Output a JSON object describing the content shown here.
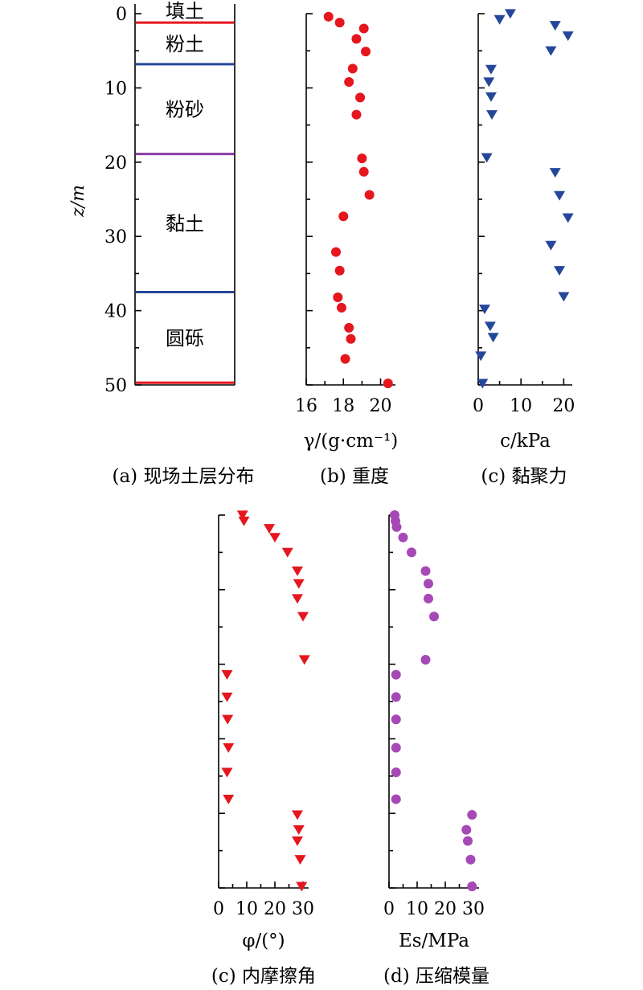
{
  "colors": {
    "red": "#e5161e",
    "blue": "#25479a",
    "purple": "#8b3ca5",
    "orchid": "#a648b6"
  },
  "chart_data": [
    {
      "id": "a",
      "type": "table",
      "caption": "(a) 现场土层分布",
      "ylabel": "z/m",
      "ylim": [
        0,
        50
      ],
      "yticks": [
        "0",
        "10",
        "20",
        "30",
        "40",
        "50"
      ],
      "layers": [
        {
          "name": "填土",
          "top": 0,
          "bottom": 1.2
        },
        {
          "name": "粉土",
          "top": 1.2,
          "bottom": 6.8
        },
        {
          "name": "粉砂",
          "top": 6.8,
          "bottom": 18.9
        },
        {
          "name": "黏土",
          "top": 18.9,
          "bottom": 37.5
        },
        {
          "name": "圆砾",
          "top": 37.5,
          "bottom": 49.7
        }
      ],
      "boundaries": [
        {
          "z": 1.2,
          "color": "#e5161e"
        },
        {
          "z": 6.8,
          "color": "#25479a"
        },
        {
          "z": 18.9,
          "color": "#8b3ca5"
        },
        {
          "z": 37.5,
          "color": "#25479a"
        },
        {
          "z": 49.7,
          "color": "#e5161e"
        }
      ]
    },
    {
      "id": "b",
      "type": "scatter",
      "caption": "(b) 重度",
      "xlabel": "γ/(g·cm⁻¹)",
      "xlim": [
        16,
        20.8
      ],
      "ylim": [
        0,
        50
      ],
      "xticks": [
        "16",
        "18",
        "20"
      ],
      "marker": "circle",
      "color": "#e5161e",
      "x": [
        17.2,
        17.8,
        19.1,
        18.7,
        19.2,
        18.5,
        18.3,
        18.9,
        18.7,
        19.0,
        19.1,
        19.4,
        18.0,
        17.6,
        17.8,
        17.7,
        17.9,
        18.3,
        18.4,
        18.1,
        20.4
      ],
      "y": [
        0.4,
        1.2,
        2.0,
        3.4,
        5.1,
        7.4,
        9.2,
        11.3,
        13.6,
        19.5,
        21.3,
        24.4,
        27.3,
        32.1,
        34.6,
        38.2,
        39.6,
        42.3,
        43.8,
        46.5,
        49.8
      ]
    },
    {
      "id": "c1",
      "type": "scatter",
      "caption": "(c) 黏聚力",
      "xlabel": "c/kPa",
      "xlim": [
        0,
        22
      ],
      "ylim": [
        0,
        50
      ],
      "xticks": [
        "0",
        "10",
        "20"
      ],
      "marker": "triangle-down",
      "color": "#25479a",
      "x": [
        7.5,
        5.0,
        18.0,
        21.0,
        17.0,
        3.0,
        2.5,
        3.0,
        3.2,
        2.0,
        18.0,
        19.0,
        21.0,
        17.0,
        19.0,
        20.0,
        1.5,
        2.8,
        3.5,
        0.6,
        1.0
      ],
      "y": [
        0.0,
        0.8,
        1.6,
        3.0,
        5.0,
        7.5,
        9.2,
        11.2,
        13.6,
        19.4,
        21.4,
        24.5,
        27.5,
        31.2,
        34.6,
        38.1,
        39.8,
        42.1,
        43.6,
        46.1,
        49.8
      ]
    },
    {
      "id": "c2",
      "type": "scatter",
      "caption": "(c) 内摩擦角",
      "xlabel": "φ/(°)",
      "xlim": [
        0,
        32
      ],
      "ylim": [
        0,
        50
      ],
      "xticks": [
        "0",
        "10",
        "20",
        "30"
      ],
      "marker": "triangle-down",
      "color": "#e5161e",
      "x": [
        8.5,
        9.0,
        18.0,
        20.0,
        24.5,
        28.0,
        28.5,
        28.0,
        30.0,
        30.5,
        3.0,
        3.0,
        3.2,
        3.5,
        3.0,
        3.5,
        28.0,
        28.5,
        28.0,
        29.0,
        29.5
      ],
      "y": [
        0.0,
        0.8,
        1.8,
        3.0,
        5.0,
        7.5,
        9.2,
        11.2,
        13.6,
        19.4,
        21.4,
        24.4,
        27.4,
        31.2,
        34.5,
        38.1,
        40.2,
        42.2,
        43.7,
        46.2,
        49.8
      ]
    },
    {
      "id": "d",
      "type": "scatter",
      "caption": "(d) 压缩模量",
      "xlabel": "Es/MPa",
      "xlim": [
        0,
        32
      ],
      "ylim": [
        0,
        50
      ],
      "xticks": [
        "0",
        "10",
        "20",
        "30"
      ],
      "marker": "circle",
      "color": "#a648b6",
      "x": [
        2.0,
        2.3,
        2.7,
        5.0,
        8.0,
        13.0,
        14.0,
        14.0,
        16.0,
        13.0,
        2.5,
        2.5,
        2.5,
        2.5,
        2.5,
        2.5,
        29.5,
        27.5,
        28.0,
        29.0,
        29.5
      ],
      "y": [
        0.0,
        0.8,
        1.6,
        3.0,
        5.0,
        7.5,
        9.2,
        11.2,
        13.6,
        19.4,
        21.4,
        24.4,
        27.4,
        31.2,
        34.5,
        38.1,
        40.2,
        42.2,
        43.7,
        46.2,
        49.8
      ]
    }
  ]
}
